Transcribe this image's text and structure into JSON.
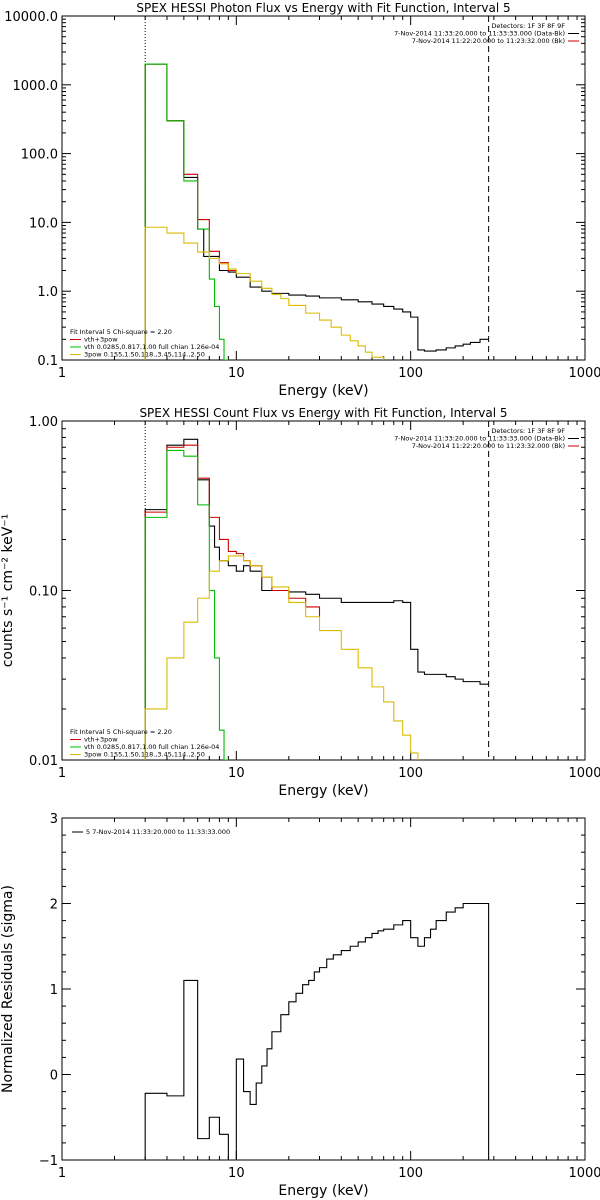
{
  "chart_data": [
    {
      "type": "line",
      "title": "SPEX HESSI Photon Flux vs Energy with Fit Function, Interval 5",
      "xlabel": "Energy (keV)",
      "ylabel": "",
      "xscale": "log",
      "yscale": "log",
      "xlim": [
        1,
        1000
      ],
      "ylim": [
        0.1,
        10000
      ],
      "xtick_labels": [
        "1",
        "10",
        "100",
        "1000"
      ],
      "ytick_values": [
        0.1,
        1,
        10,
        100,
        1000,
        10000
      ],
      "ytick_labels": [
        "0.1",
        "1.0",
        "10.0",
        "100.0",
        "1000.0",
        "10000.0"
      ],
      "vlines": [
        3.0,
        280
      ],
      "legend_tr": {
        "lines": [
          {
            "text": "Detectors: 1F 3F 8F 9F",
            "color": ""
          },
          {
            "text": "7-Nov-2014 11:33:20.000 to 11:33:33.000 (Data-Bk)",
            "color": "#000000"
          },
          {
            "text": "7-Nov-2014 11:22:20.000 to 11:23:32.000 (Bk)",
            "color": "#cc0000"
          }
        ]
      },
      "legend_bl": {
        "lines": [
          {
            "text": "Fit Interval 5   Chi-square = 2.20",
            "color": ""
          },
          {
            "text": "vth+3pow",
            "color": "#cc0000"
          },
          {
            "text": "vth 0.0285,0.817,1.00  full chian 1.26e-04",
            "color": "#00bb00"
          },
          {
            "text": "3pow 0.155,1.50,118.,3.45,114.,2.50",
            "color": "#ddbb00"
          }
        ]
      },
      "series": [
        {
          "color": "#000000",
          "x": [
            3.0,
            3.5,
            4.0,
            4.5,
            5.0,
            5.5,
            6.0,
            6.5,
            7.0,
            8.0,
            9.0,
            10,
            12,
            14,
            16,
            20,
            25,
            30,
            40,
            50,
            60,
            70,
            80,
            90,
            100,
            110,
            120,
            140,
            160,
            180,
            200,
            220,
            250,
            280
          ],
          "y": [
            2000,
            2000,
            300,
            300,
            45,
            45,
            8,
            3.2,
            3.2,
            2.0,
            1.9,
            1.6,
            1.15,
            1.0,
            0.93,
            0.88,
            0.85,
            0.8,
            0.75,
            0.7,
            0.65,
            0.6,
            0.55,
            0.5,
            0.42,
            0.14,
            0.135,
            0.14,
            0.15,
            0.16,
            0.17,
            0.18,
            0.2,
            0.2
          ]
        },
        {
          "color": "#cc0000",
          "x": [
            3.0,
            3.5,
            4.0,
            4.5,
            5.0,
            5.5,
            6.0,
            6.5,
            7.0,
            8.0,
            9.0,
            10
          ],
          "y": [
            2000,
            2000,
            300,
            300,
            50,
            50,
            11,
            11,
            3.8,
            2.6,
            2.0,
            1.8
          ]
        },
        {
          "color": "#00bb00",
          "x": [
            3.0,
            3.5,
            4.0,
            4.5,
            5.0,
            5.5,
            6.0,
            6.5,
            7.0,
            7.5,
            8.0,
            8.5,
            9.0
          ],
          "y": [
            2000,
            2000,
            300,
            300,
            40,
            40,
            8,
            8,
            1.5,
            0.6,
            0.2,
            0.1,
            0.1
          ]
        },
        {
          "color": "#ddbb00",
          "x": [
            3.0,
            4.0,
            5.0,
            6.0,
            7.0,
            8.0,
            9.0,
            10,
            12,
            14,
            16,
            18,
            20,
            25,
            30,
            35,
            40,
            45,
            50,
            55,
            60,
            70
          ],
          "y": [
            8.5,
            7.0,
            5.0,
            3.7,
            3.0,
            2.5,
            2.1,
            1.8,
            1.4,
            1.1,
            0.9,
            0.78,
            0.62,
            0.48,
            0.38,
            0.3,
            0.23,
            0.19,
            0.16,
            0.13,
            0.11,
            0.1
          ]
        }
      ]
    },
    {
      "type": "line",
      "title": "SPEX HESSI Count Flux vs Energy with Fit Function, Interval 5",
      "xlabel": "Energy (keV)",
      "ylabel": "counts s⁻¹ cm⁻² keV⁻¹",
      "xscale": "log",
      "yscale": "log",
      "xlim": [
        1,
        1000
      ],
      "ylim": [
        0.01,
        1
      ],
      "xtick_labels": [
        "1",
        "10",
        "100",
        "1000"
      ],
      "ytick_values": [
        0.01,
        0.1,
        1
      ],
      "ytick_labels": [
        "0.01",
        "0.10",
        "1.00"
      ],
      "vlines": [
        3.0,
        280
      ],
      "legend_tr": {
        "lines": [
          {
            "text": "Detectors: 1F 3F 8F 9F",
            "color": ""
          },
          {
            "text": "7-Nov-2014 11:33:20.000 to 11:33:33.000 (Data-Bk)",
            "color": "#000000"
          },
          {
            "text": "7-Nov-2014 11:22:20.000 to 11:23:32.000 (Bk)",
            "color": "#cc0000"
          }
        ]
      },
      "legend_bl": {
        "lines": [
          {
            "text": "Fit Interval 5   Chi-square = 2.20",
            "color": ""
          },
          {
            "text": "vth+3pow",
            "color": "#cc0000"
          },
          {
            "text": "vth 0.0285,0.817,1.00  full chian 1.26e-04",
            "color": "#00bb00"
          },
          {
            "text": "3pow 0.155,1.50,118.,3.45,114.,2.50",
            "color": "#ddbb00"
          }
        ]
      },
      "series": [
        {
          "color": "#000000",
          "x": [
            3.0,
            4.0,
            5.0,
            6.0,
            7.0,
            7.5,
            8.0,
            9.0,
            10,
            11,
            12,
            14,
            16,
            20,
            25,
            30,
            40,
            50,
            60,
            70,
            80,
            90,
            100,
            110,
            120,
            140,
            160,
            180,
            200,
            250,
            280
          ],
          "y": [
            0.3,
            0.72,
            0.78,
            0.45,
            0.24,
            0.18,
            0.15,
            0.14,
            0.13,
            0.14,
            0.13,
            0.1,
            0.1,
            0.098,
            0.095,
            0.09,
            0.085,
            0.085,
            0.085,
            0.085,
            0.087,
            0.085,
            0.045,
            0.033,
            0.032,
            0.032,
            0.031,
            0.03,
            0.029,
            0.028,
            0.028
          ]
        },
        {
          "color": "#cc0000",
          "x": [
            3.0,
            4.0,
            5.0,
            6.0,
            7.0,
            8.0,
            9.0,
            10,
            11,
            12,
            14,
            16,
            20,
            25,
            30
          ],
          "y": [
            0.29,
            0.7,
            0.72,
            0.46,
            0.27,
            0.2,
            0.17,
            0.165,
            0.15,
            0.14,
            0.12,
            0.1,
            0.09,
            0.08,
            0.07
          ]
        },
        {
          "color": "#00bb00",
          "x": [
            3.0,
            4.0,
            5.0,
            6.0,
            7.0,
            7.5,
            8.0,
            8.5,
            9.0
          ],
          "y": [
            0.27,
            0.67,
            0.62,
            0.32,
            0.1,
            0.04,
            0.015,
            0.01,
            0.01
          ]
        },
        {
          "color": "#ddbb00",
          "x": [
            3.0,
            4.0,
            5.0,
            6.0,
            7.0,
            8.0,
            9.0,
            10,
            11,
            12,
            14,
            16,
            20,
            25,
            30,
            40,
            50,
            60,
            70,
            80,
            90,
            100,
            110
          ],
          "y": [
            0.02,
            0.04,
            0.065,
            0.09,
            0.13,
            0.15,
            0.16,
            0.16,
            0.15,
            0.14,
            0.12,
            0.105,
            0.085,
            0.07,
            0.058,
            0.045,
            0.035,
            0.027,
            0.022,
            0.017,
            0.014,
            0.011,
            0.01
          ]
        }
      ]
    },
    {
      "type": "line",
      "title": "",
      "xlabel": "Energy (keV)",
      "ylabel": "Normalized Residuals (sigma)",
      "xscale": "log",
      "yscale": "linear",
      "xlim": [
        1,
        1000
      ],
      "ylim": [
        -1,
        3
      ],
      "xtick_labels": [
        "1",
        "10",
        "100",
        "1000"
      ],
      "ytick_values": [
        -1,
        0,
        1,
        2,
        3
      ],
      "ytick_labels": [
        "−1",
        "0",
        "1",
        "2",
        "3"
      ],
      "vlines": [],
      "legend_tl": {
        "lines": [
          {
            "text": "5  7-Nov-2014 11:33:20.000 to 11:33:33.000",
            "color": "#000000"
          }
        ]
      },
      "series": [
        {
          "color": "#000000",
          "x": [
            3.0,
            4.0,
            5.0,
            6.0,
            7.0,
            8.0,
            9.0,
            10,
            11,
            12,
            13,
            14,
            15,
            16,
            18,
            20,
            22,
            24,
            26,
            28,
            30,
            33,
            36,
            40,
            45,
            50,
            55,
            60,
            65,
            70,
            80,
            90,
            100,
            110,
            120,
            130,
            140,
            160,
            180,
            200,
            230,
            250,
            280
          ],
          "y": [
            -0.22,
            -0.25,
            1.1,
            -0.75,
            -0.5,
            -0.7,
            -1.0,
            0.18,
            -0.2,
            -0.35,
            -0.1,
            0.1,
            0.3,
            0.5,
            0.7,
            0.85,
            0.95,
            1.05,
            1.1,
            1.2,
            1.25,
            1.35,
            1.4,
            1.45,
            1.5,
            1.55,
            1.6,
            1.65,
            1.68,
            1.7,
            1.75,
            1.8,
            1.6,
            1.5,
            1.6,
            1.7,
            1.8,
            1.9,
            1.95,
            2.0,
            2.0,
            2.0,
            2.0
          ]
        }
      ]
    }
  ]
}
